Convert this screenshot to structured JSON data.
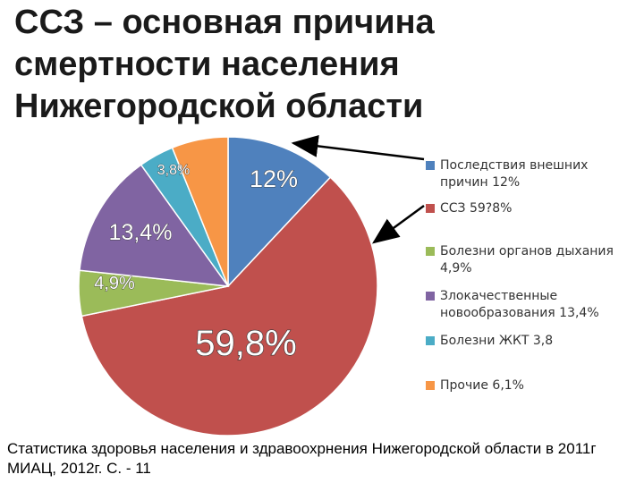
{
  "title": {
    "line1": "ССЗ – основная причина",
    "line2": "смертности населения",
    "line3": "Нижегородской  области"
  },
  "footer": {
    "line1": "Статистика здоровья населения и здравоохрнения Нижегородской  области в 2011г",
    "line2": "МИАЦ, 2012г. С. - 11"
  },
  "chart_data": {
    "type": "pie",
    "title": "",
    "slices": [
      {
        "legend": "Последствия внешних причин 12%",
        "label": "12%",
        "value": 12,
        "color": "#4f81bd"
      },
      {
        "legend": "ССЗ  59?8%",
        "label": "59,8%",
        "value": 59.8,
        "color": "#c0504d"
      },
      {
        "legend": "Болезни органов дыхания 4,9%",
        "label": "4,9%",
        "value": 4.9,
        "color": "#9bbb59"
      },
      {
        "legend": "Злокачественные новообразования 13,4%",
        "label": "13,4%",
        "value": 13.4,
        "color": "#8064a2"
      },
      {
        "legend": "Болезни ЖКТ 3,8",
        "label": "3,8%",
        "value": 3.8,
        "color": "#4bacc6"
      },
      {
        "legend": "Прочие 6,1%",
        "label": "",
        "value": 6.1,
        "color": "#f79646"
      }
    ],
    "legend_position": "right"
  }
}
